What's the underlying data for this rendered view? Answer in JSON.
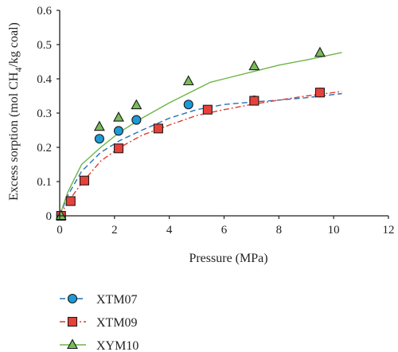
{
  "chart_data": {
    "type": "scatter",
    "xlabel": "Pressure (MPa)",
    "ylabel": {
      "prefix": "Excess sorption (mol CH",
      "sub": "4",
      "suffix": "/kg coal)"
    },
    "xlim": [
      0,
      12
    ],
    "ylim": [
      0,
      0.6
    ],
    "xticks": [
      "0",
      "2",
      "4",
      "6",
      "8",
      "10",
      "12"
    ],
    "yticks": [
      "0",
      "0.1",
      "0.2",
      "0.3",
      "0.4",
      "0.5",
      "0.6"
    ],
    "grid": false,
    "legend_position": "bottom-left",
    "series": [
      {
        "name": "XTM07",
        "marker": "circle",
        "color": "#1b9bd7",
        "line_color": "#2b6fb5",
        "line_style": "dashed",
        "points": [
          [
            0.05,
            0.0
          ],
          [
            1.45,
            0.225
          ],
          [
            2.15,
            0.248
          ],
          [
            2.8,
            0.28
          ],
          [
            4.7,
            0.325
          ],
          [
            7.1,
            0.337
          ],
          [
            9.5,
            0.36
          ]
        ],
        "fit": [
          [
            0.0,
            0.0
          ],
          [
            0.3,
            0.06
          ],
          [
            0.8,
            0.13
          ],
          [
            1.5,
            0.185
          ],
          [
            2.2,
            0.22
          ],
          [
            3.0,
            0.25
          ],
          [
            4.0,
            0.285
          ],
          [
            5.0,
            0.31
          ],
          [
            6.0,
            0.325
          ],
          [
            7.0,
            0.332
          ],
          [
            8.0,
            0.338
          ],
          [
            9.0,
            0.345
          ],
          [
            10.3,
            0.357
          ]
        ]
      },
      {
        "name": "XTM09",
        "marker": "square",
        "color": "#e8413a",
        "line_color": "#e03a2f",
        "line_style": "dashdot",
        "points": [
          [
            0.05,
            0.0
          ],
          [
            0.4,
            0.043
          ],
          [
            0.9,
            0.103
          ],
          [
            2.15,
            0.197
          ],
          [
            3.6,
            0.255
          ],
          [
            5.4,
            0.31
          ],
          [
            7.1,
            0.336
          ],
          [
            9.5,
            0.36
          ]
        ],
        "fit": [
          [
            0.0,
            0.0
          ],
          [
            0.3,
            0.04
          ],
          [
            0.8,
            0.095
          ],
          [
            1.5,
            0.16
          ],
          [
            2.2,
            0.2
          ],
          [
            3.0,
            0.235
          ],
          [
            4.0,
            0.265
          ],
          [
            5.0,
            0.293
          ],
          [
            6.0,
            0.31
          ],
          [
            7.0,
            0.325
          ],
          [
            8.0,
            0.338
          ],
          [
            9.0,
            0.35
          ],
          [
            10.3,
            0.363
          ]
        ]
      },
      {
        "name": "XYM10",
        "marker": "triangle",
        "color": "#78bd57",
        "line_color": "#6cb548",
        "line_style": "solid",
        "points": [
          [
            0.05,
            0.0
          ],
          [
            1.45,
            0.26
          ],
          [
            2.15,
            0.287
          ],
          [
            2.8,
            0.323
          ],
          [
            4.7,
            0.393
          ],
          [
            7.1,
            0.437
          ],
          [
            9.5,
            0.476
          ]
        ],
        "fit": [
          [
            0.0,
            0.0
          ],
          [
            0.3,
            0.07
          ],
          [
            0.8,
            0.15
          ],
          [
            1.5,
            0.2
          ],
          [
            2.2,
            0.245
          ],
          [
            3.0,
            0.285
          ],
          [
            4.0,
            0.33
          ],
          [
            5.0,
            0.37
          ],
          [
            5.5,
            0.39
          ],
          [
            6.0,
            0.4
          ],
          [
            7.0,
            0.42
          ],
          [
            8.0,
            0.44
          ],
          [
            9.0,
            0.455
          ],
          [
            10.3,
            0.477
          ]
        ]
      }
    ]
  }
}
